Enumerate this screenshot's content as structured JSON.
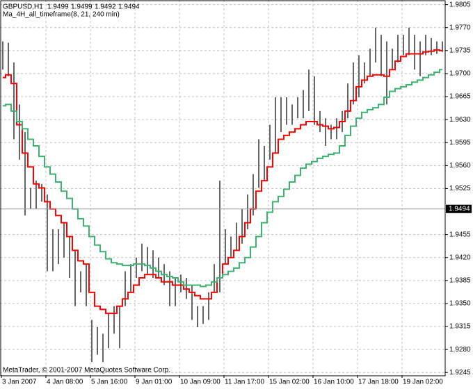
{
  "header": {
    "symbol": "GBPUSD,H1",
    "ohlc": [
      1.9499,
      1.9499,
      1.9492,
      1.9494
    ],
    "indicator": "Ma_4H_all_timeframe(8, 21, 240 min)",
    "copyright": "MetaTrader, © 2001-2007 MetaQuotes Software Corp."
  },
  "chart_data": {
    "type": "ohlc",
    "color": "#000000",
    "current_price": 1.9494,
    "categories": [
      "3 Jan 2007",
      null,
      null,
      null,
      null,
      null,
      null,
      null,
      "4 Jan 08:00",
      null,
      null,
      null,
      null,
      null,
      null,
      null,
      "5 Jan 16:00",
      null,
      null,
      null,
      null,
      null,
      null,
      null,
      "9 Jan 01:00",
      null,
      null,
      null,
      null,
      null,
      null,
      null,
      "10 Jan 09:00",
      null,
      null,
      null,
      null,
      null,
      null,
      null,
      "11 Jan 17:00",
      null,
      null,
      null,
      null,
      null,
      null,
      null,
      "15 Jan 02:00",
      null,
      null,
      null,
      null,
      null,
      null,
      null,
      "16 Jan 10:00",
      null,
      null,
      null,
      null,
      null,
      null,
      null,
      "17 Jan 18:00",
      null,
      null,
      null,
      null,
      null,
      null,
      null,
      "19 Jan 02:00",
      null,
      null,
      null,
      null,
      null,
      null,
      null
    ],
    "high": [
      1.9749,
      1.9747,
      1.9717,
      1.9653,
      1.9611,
      1.9526,
      1.9537,
      1.9532,
      1.9516,
      1.9463,
      1.9463,
      1.9473,
      1.9452,
      1.9431,
      1.9399,
      1.941,
      1.9325,
      1.9314,
      1.9304,
      1.9335,
      1.9346,
      1.9346,
      1.9399,
      1.941,
      1.942,
      1.9441,
      1.9436,
      1.9431,
      1.942,
      1.941,
      1.9399,
      1.9389,
      1.9394,
      1.9389,
      1.9378,
      1.9346,
      1.9346,
      1.9367,
      1.941,
      1.9537,
      1.9463,
      1.9452,
      1.9473,
      1.9494,
      1.9516,
      1.9547,
      1.96,
      1.959,
      1.9622,
      1.9664,
      1.9664,
      1.9664,
      1.9653,
      1.9664,
      1.9675,
      1.9706,
      1.9696,
      1.9643,
      1.9632,
      1.9622,
      1.9632,
      1.9643,
      1.9685,
      1.9717,
      1.9728,
      1.9717,
      1.9738,
      1.977,
      1.9759,
      1.9749,
      1.9738,
      1.9759,
      1.9759,
      1.977,
      1.9759,
      1.9749,
      1.9759,
      1.9754,
      1.9749,
      1.9749
    ],
    "low": [
      1.9706,
      1.9696,
      1.96,
      1.9569,
      1.9484,
      1.9494,
      1.9494,
      1.9505,
      1.9399,
      1.9399,
      1.941,
      1.942,
      1.9389,
      1.9346,
      1.9367,
      1.9346,
      1.9261,
      1.9272,
      1.9261,
      1.9282,
      1.9304,
      1.9282,
      1.9346,
      1.9367,
      1.9389,
      1.9399,
      1.9394,
      1.9389,
      1.9389,
      1.9378,
      1.9346,
      1.9346,
      1.9367,
      1.9357,
      1.9325,
      1.9314,
      1.9319,
      1.9325,
      1.9367,
      1.9367,
      1.941,
      1.942,
      1.9431,
      1.9441,
      1.9463,
      1.9484,
      1.9526,
      1.9537,
      1.9569,
      1.9579,
      1.9611,
      1.9622,
      1.9622,
      1.9632,
      1.9632,
      1.9643,
      1.9622,
      1.9611,
      1.959,
      1.96,
      1.96,
      1.9611,
      1.9632,
      1.9653,
      1.9664,
      1.9685,
      1.9696,
      1.9717,
      1.9696,
      1.9653,
      1.9706,
      1.9717,
      1.9728,
      1.9728,
      1.9706,
      1.9696,
      1.9728,
      1.9728,
      1.973,
      1.9733
    ],
    "overlays": [
      {
        "color": "#ff0000",
        "values": [
          1.9694,
          1.9698,
          1.9685,
          1.9622,
          1.9579,
          1.9558,
          1.9532,
          1.9526,
          1.9505,
          1.9494,
          1.9484,
          1.9473,
          1.9452,
          1.9431,
          1.9415,
          1.941,
          1.9367,
          1.9346,
          1.9341,
          1.9335,
          1.9335,
          1.9346,
          1.9357,
          1.9367,
          1.9378,
          1.9389,
          1.9394,
          1.9394,
          1.9389,
          1.9383,
          1.9383,
          1.9378,
          1.9378,
          1.9372,
          1.9367,
          1.9362,
          1.9357,
          1.9357,
          1.9367,
          1.9389,
          1.941,
          1.942,
          1.9431,
          1.9452,
          1.9473,
          1.9494,
          1.9521,
          1.9537,
          1.9558,
          1.9579,
          1.96,
          1.9606,
          1.9611,
          1.9616,
          1.9622,
          1.9627,
          1.9627,
          1.9622,
          1.962,
          1.9616,
          1.9618,
          1.9627,
          1.9643,
          1.9659,
          1.968,
          1.969,
          1.9696,
          1.9698,
          1.9698,
          1.9696,
          1.9706,
          1.9719,
          1.9726,
          1.973,
          1.973,
          1.973,
          1.9733,
          1.9734,
          1.9736,
          1.9735
        ]
      },
      {
        "color": "#3cb371",
        "values": [
          1.9651,
          1.9653,
          1.9643,
          1.9627,
          1.9616,
          1.96,
          1.959,
          1.9574,
          1.9558,
          1.9547,
          1.9535,
          1.9521,
          1.951,
          1.9494,
          1.9479,
          1.9468,
          1.9452,
          1.9439,
          1.9429,
          1.9418,
          1.9412,
          1.941,
          1.9408,
          1.9408,
          1.941,
          1.941,
          1.9408,
          1.9404,
          1.9399,
          1.9394,
          1.9391,
          1.9389,
          1.9383,
          1.9378,
          1.9378,
          1.9378,
          1.9376,
          1.9378,
          1.9383,
          1.9389,
          1.9394,
          1.9399,
          1.9404,
          1.9412,
          1.942,
          1.9436,
          1.9452,
          1.9473,
          1.9489,
          1.9505,
          1.9513,
          1.9524,
          1.9535,
          1.9545,
          1.9556,
          1.9562,
          1.9566,
          1.9571,
          1.9574,
          1.9577,
          1.9579,
          1.959,
          1.9606,
          1.962,
          1.9632,
          1.9641,
          1.9645,
          1.9648,
          1.9653,
          1.9664,
          1.9673,
          1.9677,
          1.968,
          1.9683,
          1.9687,
          1.969,
          1.9694,
          1.9698,
          1.9702,
          1.9706
        ]
      }
    ],
    "ylim": [
      1.9241,
      1.9812
    ],
    "yticks": [
      1.9805,
      {
        "value": 1.977,
        "label": "1.9770"
      },
      1.9735,
      {
        "value": 1.97,
        "label": "1.9700"
      },
      1.9665,
      {
        "value": 1.963,
        "label": "1.9630"
      },
      1.9595,
      {
        "value": 1.956,
        "label": "1.9560"
      },
      1.9525,
      1.9455,
      {
        "value": 1.942,
        "label": "1.9420"
      },
      1.9385,
      {
        "value": 1.935,
        "label": "1.9350"
      },
      1.9315,
      {
        "value": 1.928,
        "label": "1.9280"
      },
      1.9245
    ],
    "grid": true
  }
}
